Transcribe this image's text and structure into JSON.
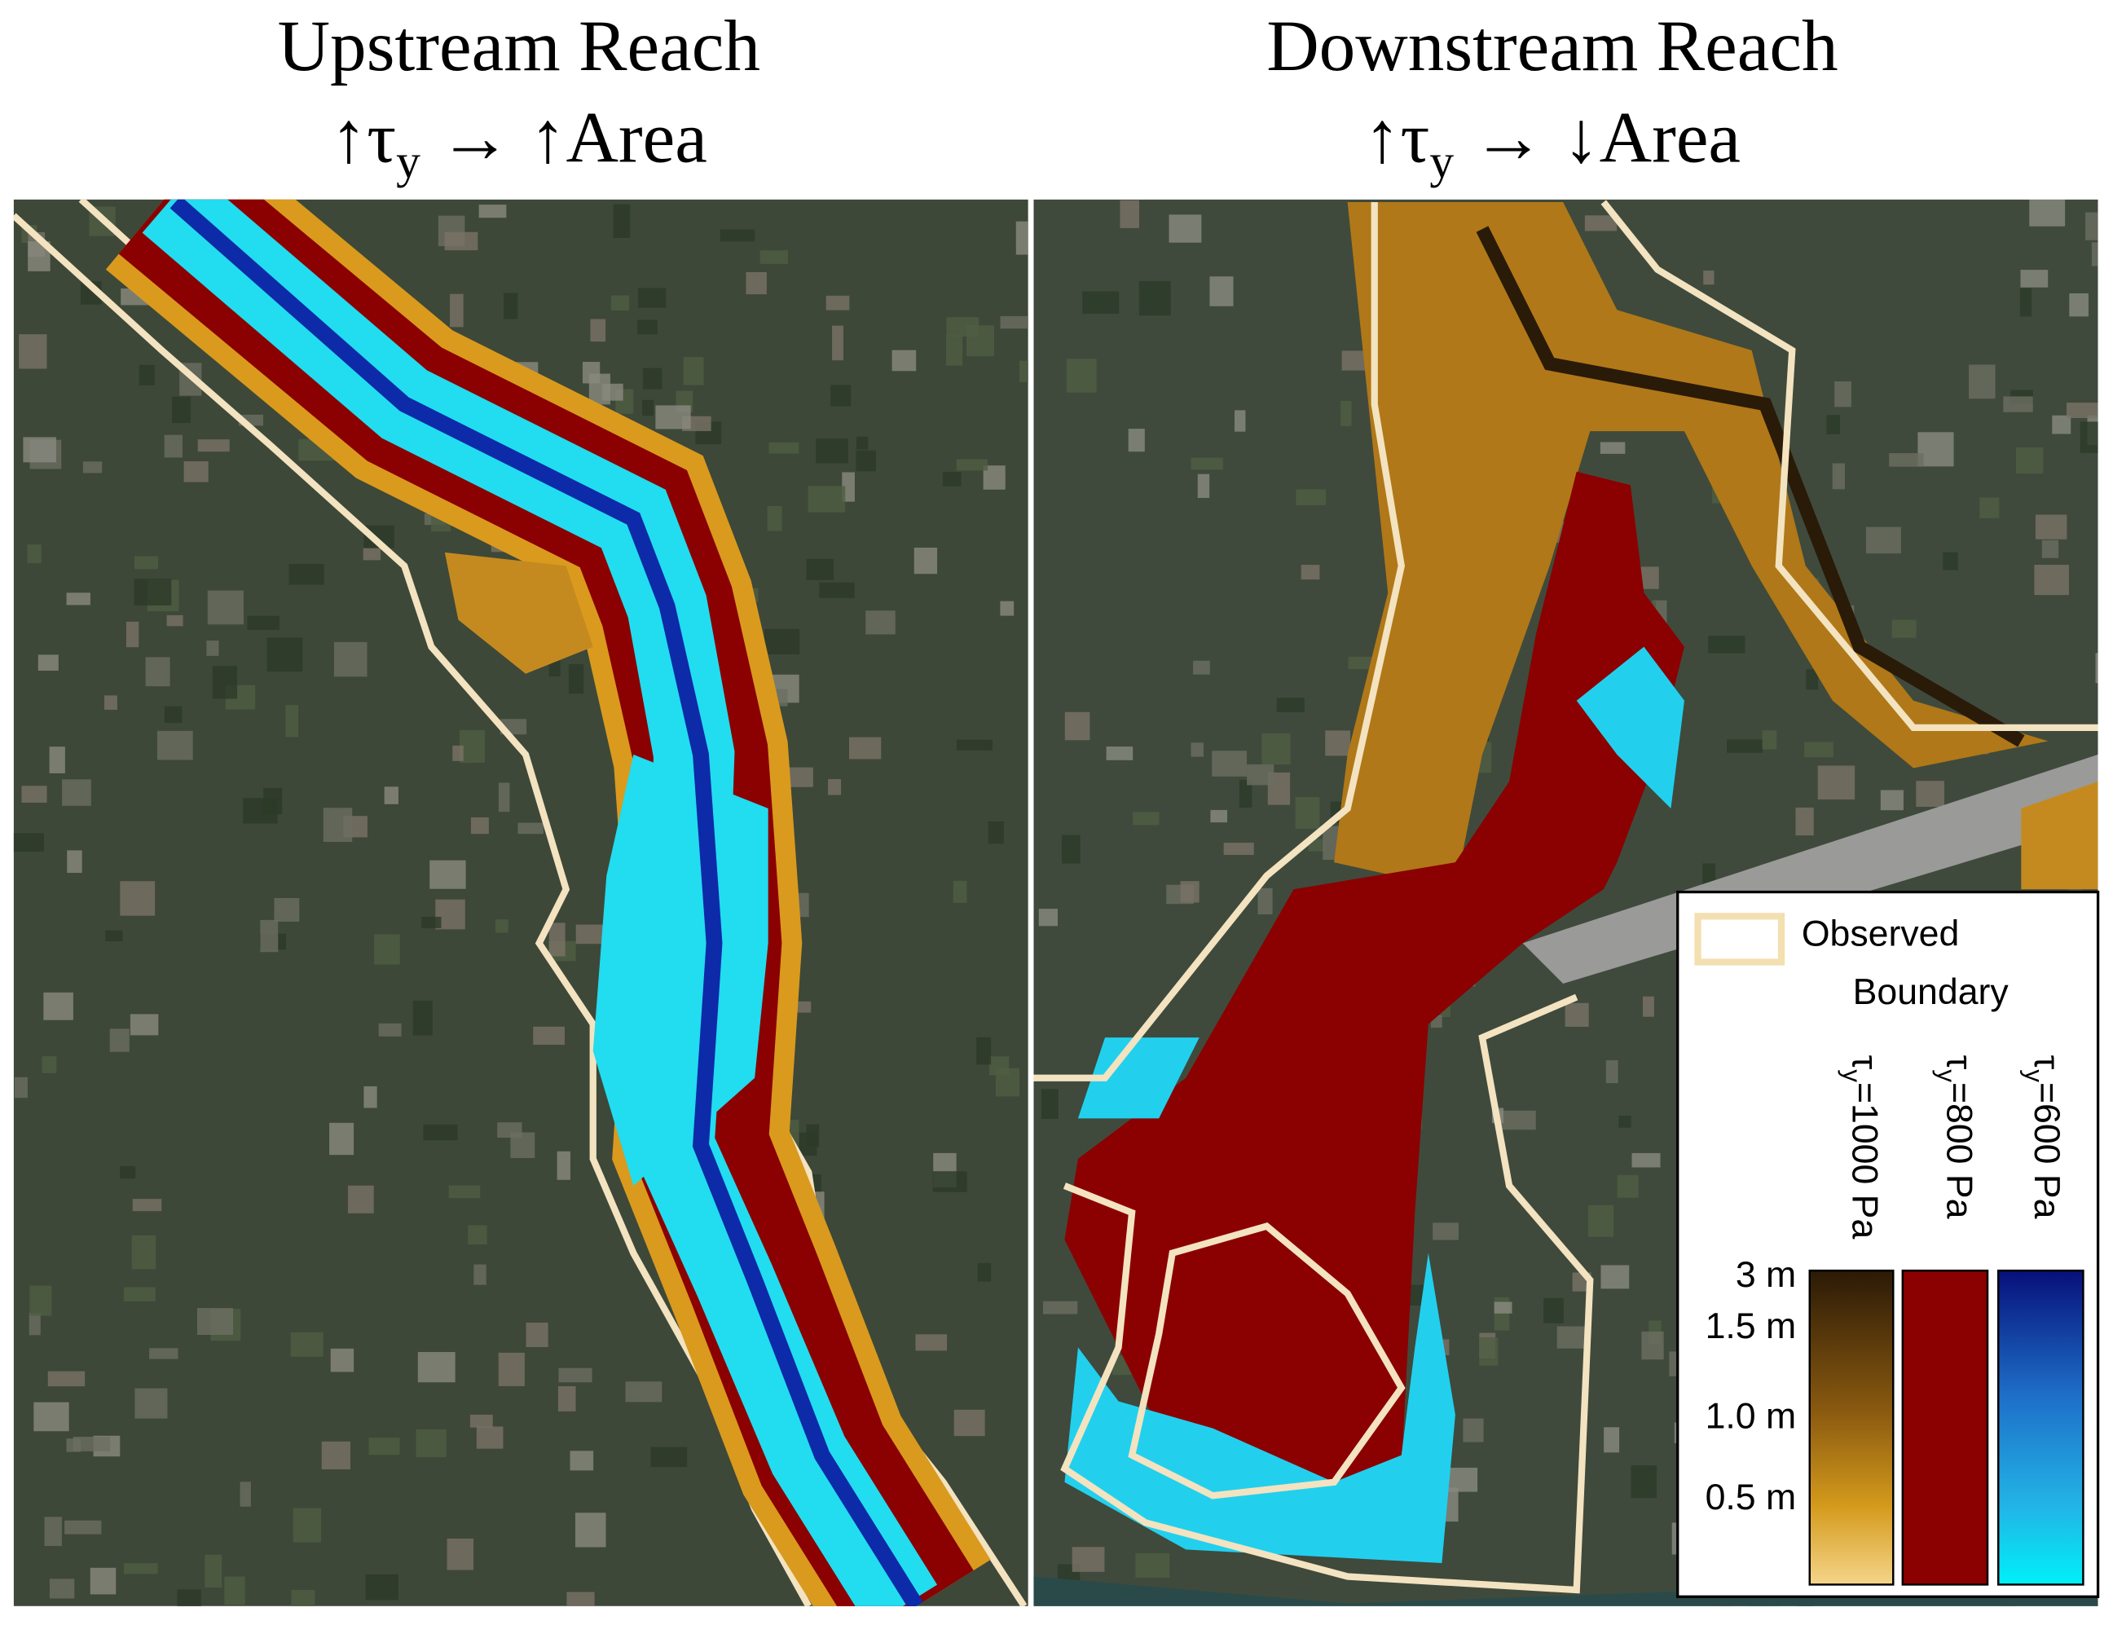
{
  "panels": [
    {
      "title": "Upstream Reach",
      "subtitle": {
        "prefix": "↑τ",
        "subscript": "y",
        "suffix": " → ↑Area"
      }
    },
    {
      "title": "Downstream Reach",
      "subtitle": {
        "prefix": "↑τ",
        "subscript": "y",
        "suffix": " → ↓Area"
      }
    }
  ],
  "legend": {
    "boundary": [
      "Observed",
      "Boundary"
    ],
    "scenarios": [
      {
        "symbol": "τ",
        "subscript": "y",
        "label": "=1000 Pa"
      },
      {
        "symbol": "τ",
        "subscript": "y",
        "label": "=800 Pa"
      },
      {
        "symbol": "τ",
        "subscript": "y",
        "label": "=600 Pa"
      }
    ],
    "depth_labels": [
      "3 m",
      "1.5 m",
      "1.0 m",
      "0.5 m"
    ]
  }
}
